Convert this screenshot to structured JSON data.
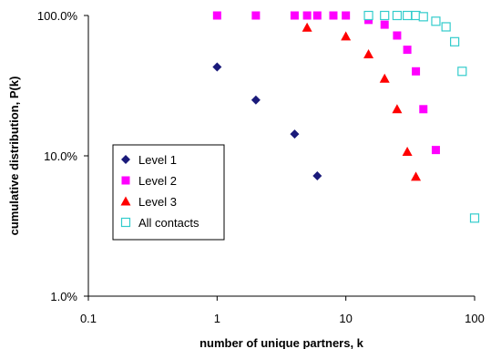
{
  "chart_data": {
    "type": "scatter",
    "xlabel": "number of unique partners, k",
    "ylabel": "cumulative distribution, P(k)",
    "x_scale": "log",
    "y_scale": "log",
    "xlim": [
      0.1,
      100
    ],
    "ylim": [
      0.01,
      1
    ],
    "x_ticks": [
      0.1,
      1,
      10,
      100
    ],
    "x_tick_labels": [
      "0.1",
      "1",
      "10",
      "100"
    ],
    "y_ticks": [
      0.01,
      0.1,
      1
    ],
    "y_tick_labels": [
      "1.0%",
      "10.0%",
      "100.0%"
    ],
    "grid": false,
    "legend_position": "left-middle",
    "series": [
      {
        "name": "Level 1",
        "marker": "diamond",
        "color": "#1a1a7a",
        "x": [
          1,
          2,
          4,
          6
        ],
        "y": [
          0.43,
          0.25,
          0.143,
          0.072
        ]
      },
      {
        "name": "Level 2",
        "marker": "square",
        "color": "#ff00ff",
        "x": [
          1,
          2,
          4,
          5,
          6,
          8,
          10,
          15,
          20,
          25,
          30,
          35,
          40,
          50
        ],
        "y": [
          1.0,
          1.0,
          1.0,
          1.0,
          1.0,
          1.0,
          1.0,
          0.93,
          0.86,
          0.72,
          0.57,
          0.4,
          0.215,
          0.11
        ]
      },
      {
        "name": "Level 3",
        "marker": "triangle",
        "color": "#ff0000",
        "x": [
          5,
          10,
          15,
          20,
          25,
          30,
          35
        ],
        "y": [
          0.82,
          0.71,
          0.53,
          0.355,
          0.215,
          0.107,
          0.071
        ]
      },
      {
        "name": "All contacts",
        "marker": "open-square",
        "color": "#33cccc",
        "x": [
          15,
          20,
          25,
          30,
          35,
          40,
          50,
          60,
          70,
          80,
          100
        ],
        "y": [
          1.0,
          1.0,
          1.0,
          1.0,
          1.0,
          0.98,
          0.91,
          0.83,
          0.65,
          0.4,
          0.036
        ]
      }
    ]
  }
}
